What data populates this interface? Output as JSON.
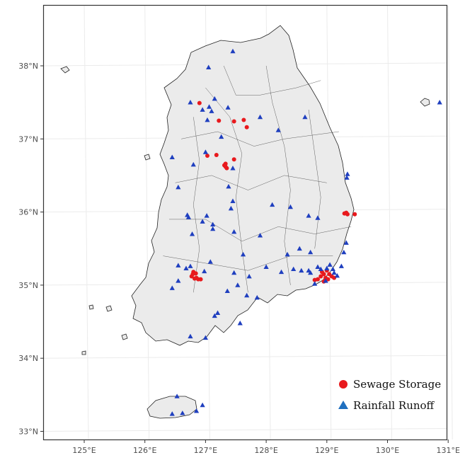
{
  "axes": {
    "x_ticks": [
      "125°E",
      "126°E",
      "127°E",
      "128°E",
      "129°E",
      "130°E",
      "131°E"
    ],
    "y_ticks": [
      "38°N",
      "37°N",
      "36°N",
      "35°N",
      "34°N",
      "33°N"
    ]
  },
  "legend": {
    "items": [
      {
        "label": "Sewage Storage",
        "shape": "circle",
        "color": "#e8191d"
      },
      {
        "label": "Rainfall Runoff",
        "shape": "triangle",
        "color": "#1f3fbf"
      }
    ]
  },
  "colors": {
    "land_fill": "#ebebeb",
    "land_border": "#222222",
    "grid": "#ebebeb",
    "panel_border": "#333333"
  },
  "chart_data": {
    "type": "scatter",
    "xlim": [
      124.5,
      131.0
    ],
    "ylim": [
      32.8,
      38.9
    ],
    "grid": true,
    "legend_position": "bottom-right",
    "series": [
      {
        "name": "Sewage Storage",
        "marker": "circle",
        "color": "#e8191d",
        "points": [
          [
            126.9,
            37.49
          ],
          [
            127.22,
            37.25
          ],
          [
            127.47,
            37.24
          ],
          [
            127.63,
            37.26
          ],
          [
            127.68,
            37.16
          ],
          [
            127.03,
            36.77
          ],
          [
            127.18,
            36.78
          ],
          [
            127.47,
            36.72
          ],
          [
            127.33,
            36.66
          ],
          [
            127.33,
            36.62
          ],
          [
            127.35,
            36.6
          ],
          [
            127.31,
            36.64
          ],
          [
            126.8,
            35.18
          ],
          [
            126.84,
            35.16
          ],
          [
            126.77,
            35.12
          ],
          [
            126.85,
            35.1
          ],
          [
            126.88,
            35.08
          ],
          [
            126.92,
            35.08
          ],
          [
            126.79,
            35.15
          ],
          [
            126.82,
            35.09
          ],
          [
            129.29,
            35.98
          ],
          [
            129.32,
            35.99
          ],
          [
            129.34,
            35.97
          ],
          [
            129.46,
            35.97
          ],
          [
            128.85,
            35.08
          ],
          [
            128.9,
            35.12
          ],
          [
            128.95,
            35.15
          ],
          [
            128.98,
            35.1
          ],
          [
            129.02,
            35.08
          ],
          [
            128.92,
            35.18
          ],
          [
            129.04,
            35.15
          ],
          [
            129.08,
            35.12
          ],
          [
            129.12,
            35.1
          ],
          [
            129.0,
            35.2
          ],
          [
            128.8,
            35.07
          ],
          [
            128.95,
            35.05
          ]
        ]
      },
      {
        "name": "Rainfall Runoff",
        "marker": "triangle",
        "color": "#1f3fbf",
        "points": [
          [
            127.45,
            38.2
          ],
          [
            127.05,
            37.98
          ],
          [
            126.75,
            37.5
          ],
          [
            127.06,
            37.44
          ],
          [
            127.15,
            37.55
          ],
          [
            126.95,
            37.4
          ],
          [
            127.1,
            37.38
          ],
          [
            127.03,
            37.26
          ],
          [
            127.26,
            37.03
          ],
          [
            127.37,
            37.43
          ],
          [
            127.9,
            37.3
          ],
          [
            128.64,
            37.3
          ],
          [
            128.2,
            37.12
          ],
          [
            130.86,
            37.5
          ],
          [
            126.45,
            36.75
          ],
          [
            126.8,
            36.65
          ],
          [
            127.0,
            36.82
          ],
          [
            127.45,
            36.6
          ],
          [
            126.55,
            36.34
          ],
          [
            127.38,
            36.35
          ],
          [
            127.45,
            36.15
          ],
          [
            127.42,
            36.05
          ],
          [
            128.1,
            36.1
          ],
          [
            128.4,
            36.07
          ],
          [
            128.85,
            35.92
          ],
          [
            128.7,
            35.95
          ],
          [
            126.7,
            35.96
          ],
          [
            126.72,
            35.93
          ],
          [
            127.02,
            35.95
          ],
          [
            127.12,
            35.83
          ],
          [
            127.12,
            35.77
          ],
          [
            126.78,
            35.7
          ],
          [
            126.95,
            35.87
          ],
          [
            127.47,
            35.73
          ],
          [
            127.9,
            35.68
          ],
          [
            129.34,
            36.52
          ],
          [
            129.33,
            36.47
          ],
          [
            126.55,
            35.27
          ],
          [
            126.68,
            35.23
          ],
          [
            126.75,
            35.26
          ],
          [
            126.98,
            35.19
          ],
          [
            127.08,
            35.32
          ],
          [
            127.47,
            35.17
          ],
          [
            127.62,
            35.42
          ],
          [
            127.72,
            35.12
          ],
          [
            126.55,
            35.06
          ],
          [
            126.45,
            34.96
          ],
          [
            127.36,
            34.92
          ],
          [
            127.53,
            35.0
          ],
          [
            127.68,
            34.86
          ],
          [
            127.85,
            34.83
          ],
          [
            127.15,
            34.58
          ],
          [
            127.2,
            34.62
          ],
          [
            127.0,
            34.28
          ],
          [
            126.75,
            34.3
          ],
          [
            127.57,
            34.48
          ],
          [
            128.0,
            35.25
          ],
          [
            128.25,
            35.18
          ],
          [
            128.35,
            35.42
          ],
          [
            128.55,
            35.5
          ],
          [
            128.73,
            35.45
          ],
          [
            128.58,
            35.2
          ],
          [
            128.45,
            35.22
          ],
          [
            128.85,
            35.25
          ],
          [
            128.9,
            35.22
          ],
          [
            129.0,
            35.23
          ],
          [
            129.1,
            35.22
          ],
          [
            129.12,
            35.17
          ],
          [
            129.17,
            35.13
          ],
          [
            129.05,
            35.28
          ],
          [
            129.24,
            35.26
          ],
          [
            129.28,
            35.45
          ],
          [
            129.32,
            35.58
          ],
          [
            128.7,
            35.2
          ],
          [
            128.73,
            35.17
          ],
          [
            128.8,
            35.02
          ],
          [
            128.98,
            35.06
          ],
          [
            126.53,
            33.48
          ],
          [
            126.95,
            33.36
          ],
          [
            126.85,
            33.28
          ],
          [
            126.62,
            33.25
          ],
          [
            126.45,
            33.24
          ]
        ]
      }
    ]
  }
}
